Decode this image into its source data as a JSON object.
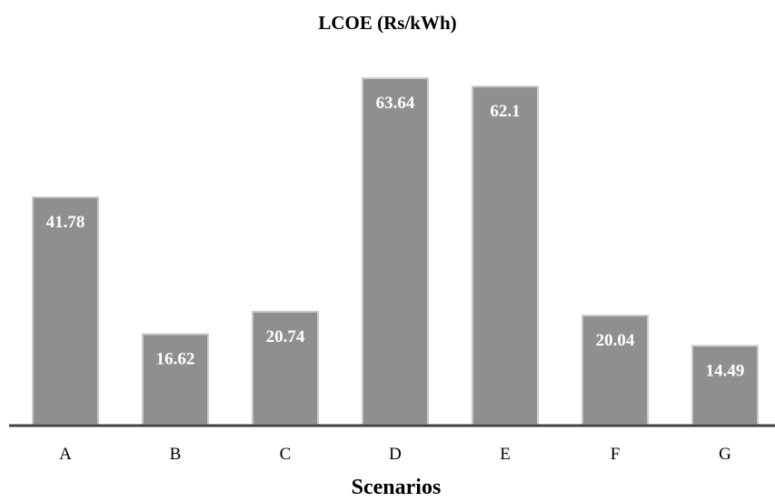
{
  "chart_data": {
    "type": "bar",
    "title": "LCOE (Rs/kWh)",
    "xlabel": "Scenarios",
    "ylabel": "",
    "categories": [
      "A",
      "B",
      "C",
      "D",
      "E",
      "F",
      "G"
    ],
    "values": [
      41.78,
      16.62,
      20.74,
      63.64,
      62.1,
      20.04,
      14.49
    ],
    "value_labels": [
      "41.78",
      "16.62",
      "20.74",
      "63.64",
      "62.1",
      "20.04",
      "14.49"
    ],
    "ylim": [
      0,
      64.5
    ],
    "grid": false,
    "legend": "none",
    "bar_color": "#8f8f8f",
    "bar_edge_color": "#c9c9c9",
    "axis_color": "#404040"
  }
}
